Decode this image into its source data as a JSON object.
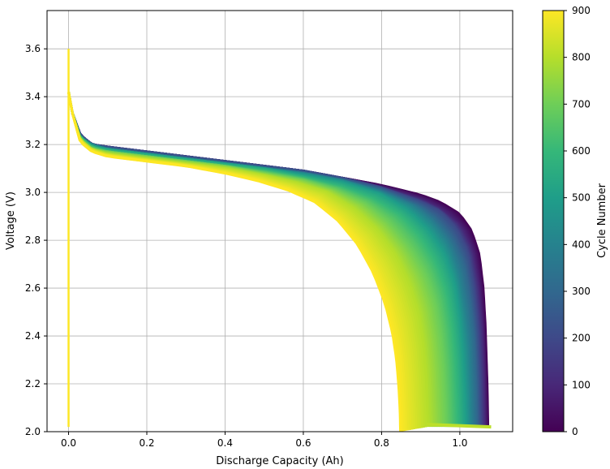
{
  "chart_data": {
    "type": "line",
    "title": "",
    "xlabel": "Discharge Capacity (Ah)",
    "ylabel": "Voltage (V)",
    "xlim": [
      -0.055,
      1.135
    ],
    "ylim": [
      2.0,
      3.76
    ],
    "xticks": [
      0.0,
      0.2,
      0.4,
      0.6,
      0.8,
      1.0
    ],
    "xtick_labels": [
      "0.0",
      "0.2",
      "0.4",
      "0.6",
      "0.8",
      "1.0"
    ],
    "yticks": [
      2.0,
      2.2,
      2.4,
      2.6,
      2.8,
      3.0,
      3.2,
      3.4,
      3.6
    ],
    "ytick_labels": [
      "2.0",
      "2.2",
      "2.4",
      "2.6",
      "2.8",
      "3.0",
      "3.2",
      "3.4",
      "3.6"
    ],
    "grid": true,
    "colormap": "viridis",
    "colorbar": {
      "label": "Cycle Number",
      "range": [
        0,
        900
      ],
      "ticks": [
        0,
        100,
        200,
        300,
        400,
        500,
        600,
        700,
        800,
        900
      ],
      "tick_labels": [
        "0",
        "100",
        "200",
        "300",
        "400",
        "500",
        "600",
        "700",
        "800",
        "900"
      ]
    },
    "series_note_cycles": [
      0,
      100,
      200,
      300,
      400,
      500,
      600,
      700,
      800,
      900
    ],
    "series": [
      {
        "cycle": 0,
        "x": [
          0.0,
          0.01,
          0.03,
          0.06,
          0.1,
          0.2,
          0.3,
          0.4,
          0.5,
          0.6,
          0.7,
          0.8,
          0.9,
          0.95,
          1.0,
          1.03,
          1.05,
          1.06,
          1.065,
          1.07,
          1.072
        ],
        "y": [
          3.42,
          3.33,
          3.24,
          3.2,
          3.19,
          3.17,
          3.15,
          3.13,
          3.11,
          3.09,
          3.06,
          3.03,
          2.99,
          2.96,
          2.91,
          2.84,
          2.74,
          2.6,
          2.45,
          2.2,
          2.02
        ]
      },
      {
        "cycle": 100,
        "x": [
          0.0,
          0.01,
          0.03,
          0.06,
          0.1,
          0.2,
          0.3,
          0.4,
          0.5,
          0.6,
          0.7,
          0.8,
          0.9,
          0.95,
          1.0,
          1.03,
          1.045,
          1.055,
          1.06,
          1.062
        ],
        "y": [
          3.42,
          3.33,
          3.24,
          3.2,
          3.19,
          3.17,
          3.15,
          3.13,
          3.11,
          3.09,
          3.06,
          3.02,
          2.97,
          2.93,
          2.86,
          2.76,
          2.62,
          2.45,
          2.25,
          2.02
        ]
      },
      {
        "cycle": 200,
        "x": [
          0.0,
          0.01,
          0.03,
          0.06,
          0.1,
          0.2,
          0.3,
          0.4,
          0.5,
          0.6,
          0.7,
          0.8,
          0.9,
          0.95,
          0.99,
          1.02,
          1.035,
          1.045,
          1.05,
          1.052
        ],
        "y": [
          3.42,
          3.33,
          3.24,
          3.2,
          3.19,
          3.17,
          3.15,
          3.13,
          3.11,
          3.09,
          3.06,
          3.02,
          2.96,
          2.92,
          2.85,
          2.75,
          2.6,
          2.43,
          2.22,
          2.02
        ]
      },
      {
        "cycle": 300,
        "x": [
          0.0,
          0.01,
          0.03,
          0.06,
          0.1,
          0.2,
          0.3,
          0.4,
          0.5,
          0.6,
          0.7,
          0.8,
          0.9,
          0.94,
          0.98,
          1.01,
          1.025,
          1.035,
          1.04,
          1.042
        ],
        "y": [
          3.42,
          3.33,
          3.23,
          3.2,
          3.18,
          3.16,
          3.14,
          3.12,
          3.1,
          3.08,
          3.05,
          3.01,
          2.94,
          2.89,
          2.81,
          2.7,
          2.55,
          2.4,
          2.2,
          2.02
        ]
      },
      {
        "cycle": 400,
        "x": [
          0.0,
          0.01,
          0.03,
          0.06,
          0.1,
          0.2,
          0.3,
          0.4,
          0.5,
          0.6,
          0.7,
          0.8,
          0.88,
          0.93,
          0.97,
          0.995,
          1.01,
          1.02,
          1.025,
          1.027
        ],
        "y": [
          3.42,
          3.33,
          3.23,
          3.2,
          3.18,
          3.16,
          3.14,
          3.12,
          3.1,
          3.08,
          3.05,
          3.0,
          2.94,
          2.87,
          2.78,
          2.66,
          2.52,
          2.37,
          2.18,
          2.02
        ]
      },
      {
        "cycle": 500,
        "x": [
          0.0,
          0.01,
          0.03,
          0.06,
          0.1,
          0.2,
          0.3,
          0.4,
          0.5,
          0.6,
          0.7,
          0.8,
          0.87,
          0.92,
          0.96,
          0.985,
          0.998,
          1.006,
          1.011,
          1.013
        ],
        "y": [
          3.42,
          3.33,
          3.23,
          3.19,
          3.18,
          3.16,
          3.14,
          3.12,
          3.1,
          3.07,
          3.04,
          2.99,
          2.92,
          2.84,
          2.74,
          2.62,
          2.48,
          2.33,
          2.15,
          2.02
        ]
      },
      {
        "cycle": 600,
        "x": [
          0.0,
          0.01,
          0.03,
          0.06,
          0.1,
          0.2,
          0.3,
          0.4,
          0.5,
          0.6,
          0.7,
          0.78,
          0.85,
          0.9,
          0.94,
          0.965,
          0.978,
          0.986,
          0.99,
          0.992
        ],
        "y": [
          3.42,
          3.33,
          3.23,
          3.19,
          3.17,
          3.15,
          3.13,
          3.11,
          3.09,
          3.06,
          3.02,
          2.97,
          2.9,
          2.81,
          2.7,
          2.58,
          2.45,
          2.3,
          2.14,
          2.02
        ]
      },
      {
        "cycle": 700,
        "x": [
          0.0,
          0.01,
          0.03,
          0.06,
          0.1,
          0.2,
          0.3,
          0.4,
          0.5,
          0.6,
          0.68,
          0.76,
          0.82,
          0.87,
          0.91,
          0.935,
          0.948,
          0.956,
          0.96,
          0.962
        ],
        "y": [
          3.42,
          3.33,
          3.22,
          3.18,
          3.17,
          3.15,
          3.13,
          3.11,
          3.08,
          3.05,
          3.01,
          2.95,
          2.87,
          2.77,
          2.66,
          2.54,
          2.41,
          2.27,
          2.12,
          2.02
        ]
      },
      {
        "cycle": 800,
        "x": [
          0.0,
          0.01,
          0.03,
          0.06,
          0.1,
          0.2,
          0.3,
          0.4,
          0.5,
          0.58,
          0.66,
          0.73,
          0.79,
          0.835,
          0.87,
          0.893,
          0.905,
          0.912,
          0.916,
          0.918
        ],
        "y": [
          3.42,
          3.33,
          3.22,
          3.18,
          3.16,
          3.14,
          3.12,
          3.1,
          3.07,
          3.04,
          3.0,
          2.93,
          2.84,
          2.74,
          2.62,
          2.5,
          2.38,
          2.25,
          2.1,
          2.02
        ]
      },
      {
        "cycle": 900,
        "x": [
          0.0,
          0.01,
          0.03,
          0.06,
          0.1,
          0.2,
          0.3,
          0.4,
          0.48,
          0.56,
          0.63,
          0.69,
          0.74,
          0.78,
          0.81,
          0.828,
          0.838,
          0.844,
          0.847,
          0.848
        ],
        "y": [
          3.42,
          3.33,
          3.21,
          3.17,
          3.15,
          3.13,
          3.11,
          3.08,
          3.05,
          3.01,
          2.96,
          2.88,
          2.78,
          2.66,
          2.53,
          2.41,
          2.3,
          2.18,
          2.08,
          2.0
        ]
      }
    ],
    "colors": {
      "viridis": [
        "#440154",
        "#482878",
        "#3e4989",
        "#31688e",
        "#26828e",
        "#1f9e89",
        "#35b779",
        "#6ece58",
        "#b5de2b",
        "#fde725"
      ],
      "grid": "#b0b0b0",
      "axes": "#000000"
    }
  }
}
